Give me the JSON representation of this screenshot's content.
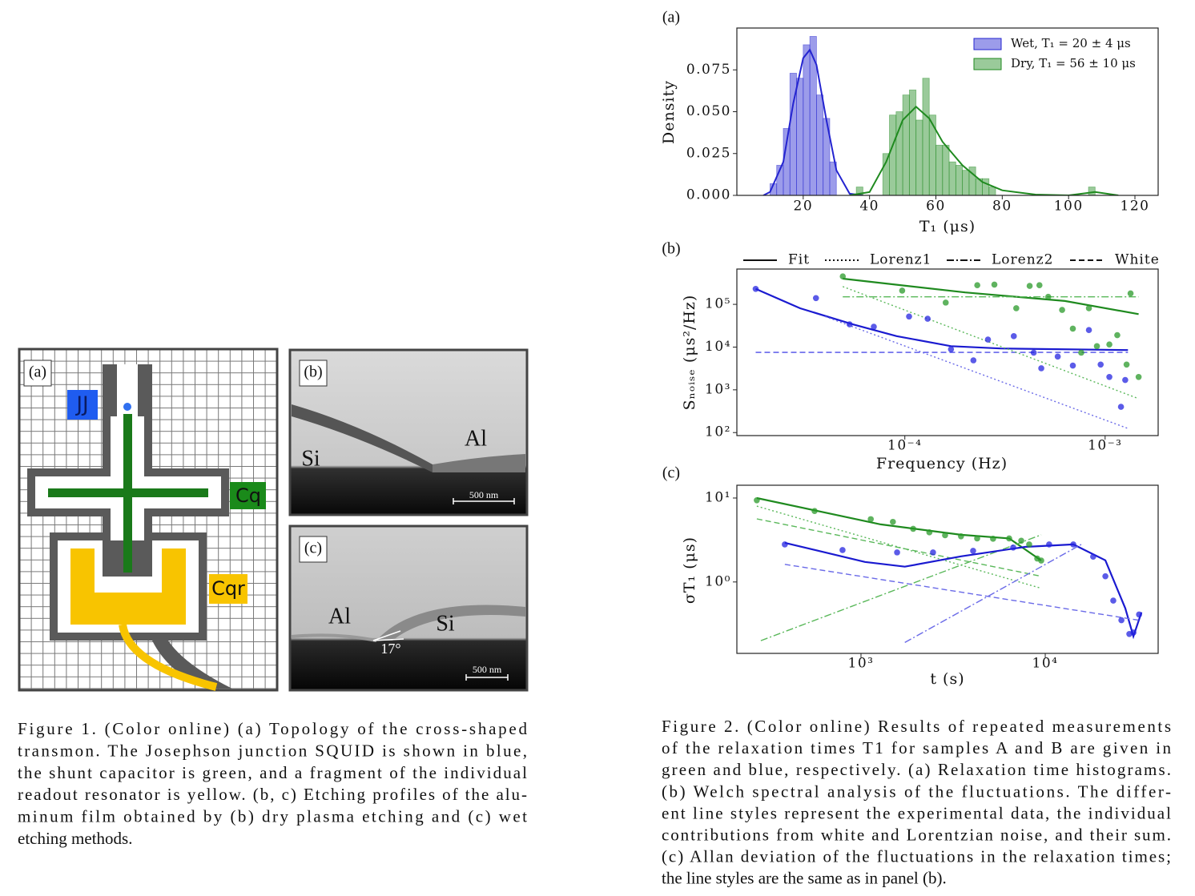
{
  "figure1": {
    "panel_labels": [
      "(a)",
      "(b)",
      "(c)"
    ],
    "labels": {
      "jj": "JJ",
      "cq": "Cq",
      "cqr": "Cqr"
    },
    "b_labels": {
      "si": "Si",
      "al": "Al",
      "scale": "500 nm"
    },
    "c_labels": {
      "al": "Al",
      "si": "Si",
      "angle": "17°",
      "scale": "500 nm"
    },
    "caption": [
      "Figure 1.  (Color online) (a) Topology of the cross-shaped",
      "transmon. The Josephson junction SQUID is shown in blue,",
      "the shunt capacitor is green, and a fragment of the individual",
      "readout resonator is yellow. (b, c) Etching profiles of the alu-",
      "minum film obtained by (b) dry plasma etching and (c) wet",
      "etching methods."
    ]
  },
  "figure2": {
    "caption": [
      "Figure 2.  (Color online) Results of repeated measurements",
      "of the relaxation times T1 for samples A and B are given in",
      "green and blue, respectively. (a) Relaxation time histograms.",
      "(b) Welch spectral analysis of the fluctuations. The differ-",
      "ent line styles represent the experimental data, the individual",
      "contributions from white and Lorentzian noise, and their sum.",
      "(c) Allan deviation of the fluctuations in the relaxation times;",
      "the line styles are the same as in panel (b)."
    ]
  },
  "chart_data": [
    {
      "type": "histogram",
      "panel_label": "(a)",
      "xlabel": "T₁ (μs)",
      "ylabel": "Density",
      "xlim": [
        0,
        127
      ],
      "ylim": [
        0,
        0.1
      ],
      "xticks": [
        20,
        40,
        60,
        80,
        100,
        120
      ],
      "yticks": [
        {
          "value": 0,
          "label": "0.000"
        },
        {
          "value": 0.025,
          "label": "0.025"
        },
        {
          "value": 0.05,
          "label": "0.050"
        },
        {
          "value": 0.075,
          "label": "0.075"
        }
      ],
      "legend": "upper right",
      "series": [
        {
          "name": "Wet, T₁ = 20 ± 4  μs",
          "color": "#2424d0",
          "bins": [
            10,
            12,
            14,
            16,
            18,
            20,
            22,
            24,
            26,
            28,
            30
          ],
          "counts": [
            0.007,
            0.018,
            0.04,
            0.073,
            0.07,
            0.09,
            0.095,
            0.06,
            0.046,
            0.02
          ],
          "fit": {
            "x": [
              8,
              10,
              14,
              17,
              20,
              22,
              24,
              27,
              30,
              34,
              38
            ],
            "y": [
              0,
              0.002,
              0.02,
              0.055,
              0.082,
              0.087,
              0.078,
              0.045,
              0.015,
              0.001,
              0
            ]
          }
        },
        {
          "name": "Dry, T₁ = 56 ± 10 μs",
          "color": "#1f8a1f",
          "bins": [
            36,
            38,
            40,
            42,
            44,
            46,
            48,
            50,
            52,
            54,
            56,
            58,
            60,
            62,
            64,
            66,
            68,
            70,
            72,
            74,
            76,
            78,
            80,
            82,
            84,
            86,
            88,
            90,
            92,
            94,
            96,
            98,
            100,
            102,
            104,
            106,
            108
          ],
          "counts": [
            0.005,
            0,
            0,
            0,
            0.025,
            0.048,
            0.05,
            0.06,
            0.063,
            0.045,
            0.07,
            0.048,
            0.03,
            0.03,
            0.02,
            0.018,
            0.015,
            0.017,
            0.01,
            0.01,
            0.005,
            0,
            0,
            0,
            0,
            0,
            0,
            0,
            0,
            0,
            0,
            0,
            0,
            0,
            0,
            0.005
          ],
          "fit": {
            "x": [
              34,
              40,
              45,
              50,
              54,
              58,
              62,
              68,
              74,
              80,
              90,
              100,
              108,
              115
            ],
            "y": [
              0,
              0.002,
              0.02,
              0.045,
              0.053,
              0.046,
              0.032,
              0.018,
              0.008,
              0.003,
              0.0005,
              0,
              0.002,
              0
            ]
          }
        }
      ]
    },
    {
      "type": "scatter",
      "panel_label": "(b)",
      "xlabel": "Frequency (Hz)",
      "ylabel": "Sₙₒᵢₛₑ (μs²/Hz)",
      "log_x": true,
      "log_y": true,
      "xlim": [
        1.45e-05,
        0.00184
      ],
      "ylim": [
        85,
        670000
      ],
      "xticks": [
        {
          "value": 0.0001,
          "label": "10⁻⁴"
        },
        {
          "value": 0.001,
          "label": "10⁻³"
        }
      ],
      "yticks": [
        {
          "value": 100,
          "label": "10²"
        },
        {
          "value": 1000,
          "label": "10³"
        },
        {
          "value": 10000,
          "label": "10⁴"
        },
        {
          "value": 100000,
          "label": "10⁵"
        }
      ],
      "legend": [
        {
          "name": "Fit",
          "style": "solid"
        },
        {
          "name": "Lorenz1",
          "style": "dotted"
        },
        {
          "name": "Lorenz2",
          "style": "dashdot"
        },
        {
          "name": "White",
          "style": "dashed"
        }
      ],
      "series": [
        {
          "color": "#2424e0",
          "x": [
            1.8e-05,
            3.6e-05,
            5.3e-05,
            7e-05,
            0.000105,
            0.00013,
            0.00017,
            0.00022,
            0.00026,
            0.00035,
            0.00044,
            0.00048,
            0.00058,
            0.00069,
            0.00083,
            0.00095,
            0.00105,
            0.0012,
            0.00126
          ],
          "y": [
            230000,
            140000,
            34000,
            30000,
            52000,
            46000,
            8900,
            4900,
            15000,
            18000,
            7400,
            3200,
            6000,
            3700,
            25000,
            3900,
            2000,
            400,
            1700
          ]
        },
        {
          "color": "#2a9a2a",
          "x": [
            4.9e-05,
            9.7e-05,
            0.00016,
            0.00023,
            0.00028,
            0.00036,
            0.00042,
            0.00047,
            0.00052,
            0.00061,
            0.00069,
            0.00076,
            0.00083,
            0.00091,
            0.00105,
            0.00115,
            0.00128,
            0.00134,
            0.00147
          ],
          "y": [
            450000,
            210000,
            110000,
            280000,
            290000,
            81000,
            270000,
            280000,
            150000,
            74000,
            27000,
            7400,
            81000,
            10500,
            11500,
            19000,
            3900,
            180000,
            2000
          ]
        }
      ],
      "lines": [
        {
          "color": "#1a1ad0",
          "style": "solid",
          "x": [
            1.8e-05,
            3e-05,
            5.5e-05,
            9.1e-05,
            0.00017,
            0.0003,
            0.0013
          ],
          "y": [
            230000,
            81000,
            34000,
            18000,
            10500,
            9300,
            8500
          ]
        },
        {
          "color": "#4a4ae8",
          "style": "dashed",
          "x": [
            1.8e-05,
            0.0013
          ],
          "y": [
            7500,
            7500
          ]
        },
        {
          "color": "#6a6ae8",
          "style": "dotted",
          "x": [
            4e-05,
            0.0013
          ],
          "y": [
            52000,
            125
          ]
        },
        {
          "color": "#1f8a1f",
          "style": "solid",
          "x": [
            4.9e-05,
            0.0002,
            0.00063,
            0.00147
          ],
          "y": [
            400000,
            190000,
            120000,
            59000
          ]
        },
        {
          "color": "#5ab85a",
          "style": "dashdot",
          "x": [
            4.9e-05,
            0.00147
          ],
          "y": [
            150000,
            150000
          ]
        },
        {
          "color": "#5ab85a",
          "style": "dotted",
          "x": [
            4.9e-05,
            0.00147
          ],
          "y": [
            260000,
            620
          ]
        }
      ]
    },
    {
      "type": "scatter",
      "panel_label": "(c)",
      "xlabel": "t (s)",
      "ylabel": "σT₁ (μs)",
      "log_x": true,
      "log_y": true,
      "xlim": [
        212,
        41000
      ],
      "ylim": [
        0.141,
        14.2
      ],
      "xticks": [
        {
          "value": 1000,
          "label": "10³"
        },
        {
          "value": 10000,
          "label": "10⁴"
        }
      ],
      "yticks": [
        {
          "value": 1,
          "label": "10⁰"
        },
        {
          "value": 10,
          "label": "10¹"
        }
      ],
      "series": [
        {
          "color": "#2a9a2a",
          "x": [
            272,
            560,
            1130,
            1490,
            1920,
            2350,
            2860,
            3490,
            4270,
            5210,
            6370,
            7410,
            8180,
            9050,
            9510
          ],
          "y": [
            9.4,
            7.0,
            5.6,
            5.2,
            4.3,
            3.9,
            3.6,
            3.5,
            3.3,
            3.27,
            3.3,
            3.1,
            2.8,
            1.9,
            1.8
          ]
        },
        {
          "color": "#2424e0",
          "x": [
            386,
            794,
            1570,
            2460,
            4060,
            6700,
            10500,
            14200,
            18200,
            21200,
            23400,
            25900,
            28600,
            30100,
            32300
          ],
          "y": [
            2.8,
            2.4,
            2.25,
            2.25,
            2.35,
            2.57,
            2.8,
            2.8,
            2.0,
            1.17,
            0.6,
            0.35,
            0.24,
            0.25,
            0.41
          ]
        }
      ],
      "lines": [
        {
          "color": "#1f8a1f",
          "style": "solid",
          "x": [
            272,
            1280,
            3490,
            6370,
            9510
          ],
          "y": [
            10,
            4.85,
            3.65,
            3.3,
            1.8
          ]
        },
        {
          "color": "#5ab85a",
          "style": "dotted",
          "x": [
            272,
            9510
          ],
          "y": [
            8.0,
            0.84
          ]
        },
        {
          "color": "#5ab85a",
          "style": "dashed",
          "x": [
            272,
            9510
          ],
          "y": [
            5.65,
            1.17
          ]
        },
        {
          "color": "#5ab85a",
          "style": "dashdot",
          "x": [
            286,
            9510
          ],
          "y": [
            0.2,
            3.65
          ]
        },
        {
          "color": "#1a1ad0",
          "style": "solid",
          "x": [
            386,
            1050,
            1730,
            3490,
            7780,
            14200,
            21200,
            27200,
            30100,
            33300
          ],
          "y": [
            2.93,
            1.73,
            1.52,
            2.02,
            2.62,
            2.8,
            1.81,
            0.485,
            0.225,
            0.435
          ]
        },
        {
          "color": "#6a6ae8",
          "style": "dashed",
          "x": [
            386,
            32300
          ],
          "y": [
            1.62,
            0.35
          ]
        },
        {
          "color": "#6a6ae8",
          "style": "dashdot",
          "x": [
            1730,
            15700
          ],
          "y": [
            0.19,
            2.8
          ]
        }
      ]
    }
  ]
}
